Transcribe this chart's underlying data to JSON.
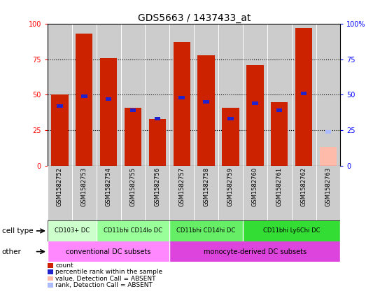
{
  "title": "GDS5663 / 1437433_at",
  "samples": [
    "GSM1582752",
    "GSM1582753",
    "GSM1582754",
    "GSM1582755",
    "GSM1582756",
    "GSM1582757",
    "GSM1582758",
    "GSM1582759",
    "GSM1582760",
    "GSM1582761",
    "GSM1582762",
    "GSM1582763"
  ],
  "red_values": [
    50,
    93,
    76,
    41,
    33,
    87,
    78,
    41,
    71,
    45,
    97,
    0
  ],
  "blue_values": [
    42,
    49,
    47,
    39,
    33,
    48,
    45,
    33,
    44,
    39,
    51,
    0
  ],
  "absent_red": [
    0,
    0,
    0,
    0,
    0,
    0,
    0,
    0,
    0,
    0,
    0,
    13
  ],
  "absent_blue": [
    0,
    0,
    0,
    0,
    0,
    0,
    0,
    0,
    0,
    0,
    0,
    24
  ],
  "cell_type_groups": [
    {
      "label": "CD103+ DC",
      "start": 0,
      "end": 2,
      "color": "#ccffcc"
    },
    {
      "label": "CD11bhi CD14lo DC",
      "start": 2,
      "end": 5,
      "color": "#99ff99"
    },
    {
      "label": "CD11bhi CD14hi DC",
      "start": 5,
      "end": 8,
      "color": "#66ee66"
    },
    {
      "label": "CD11bhi Ly6Chi DC",
      "start": 8,
      "end": 12,
      "color": "#33dd33"
    }
  ],
  "other_groups": [
    {
      "label": "conventional DC subsets",
      "start": 0,
      "end": 5,
      "color": "#ff88ff"
    },
    {
      "label": "monocyte-derived DC subsets",
      "start": 5,
      "end": 12,
      "color": "#dd44dd"
    }
  ],
  "bar_color": "#cc2200",
  "blue_color": "#2222cc",
  "absent_red_color": "#ffbbaa",
  "absent_blue_color": "#aabbff",
  "bg_color": "#cccccc",
  "title_fontsize": 10,
  "tick_fontsize": 7,
  "label_fontsize": 6.5,
  "legend_items": [
    {
      "label": "count",
      "color": "#cc2200"
    },
    {
      "label": "percentile rank within the sample",
      "color": "#2222cc"
    },
    {
      "label": "value, Detection Call = ABSENT",
      "color": "#ffbbaa"
    },
    {
      "label": "rank, Detection Call = ABSENT",
      "color": "#aabbff"
    }
  ]
}
